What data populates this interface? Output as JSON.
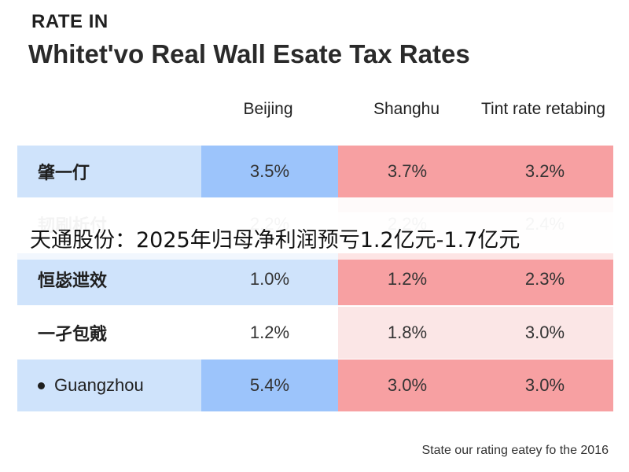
{
  "kicker": "RATE IN",
  "title": "Whitet'vo Real Wall Esate Tax Rates",
  "footnote": "State our rating eatey fo the 2016",
  "banner": "天通股份：2025年归母净利润预亏1.2亿元-1.7亿元",
  "colors": {
    "blue": "#9cc4fb",
    "blue_light": "#cfe3fb",
    "red": "#f7a0a2",
    "red_light": "#fbd3d4",
    "red_pale": "#fbe6e6"
  },
  "chart_data": {
    "type": "table",
    "title": "Whitet'vo Real Wall Esate Tax Rates",
    "columns": [
      "Beijing",
      "Shanghu",
      "Tint rate retabing"
    ],
    "rows": [
      {
        "label": "肇一仃",
        "values": [
          "3.5%",
          "3.7%",
          "3.2%"
        ],
        "bullet": false
      },
      {
        "label": "韧刷析付",
        "values": [
          "2.2%",
          "2.2%",
          "2.4%"
        ],
        "bullet": false
      },
      {
        "label": "恒毖迣效",
        "values": [
          "1.0%",
          "1.2%",
          "2.3%"
        ],
        "bullet": false
      },
      {
        "label": "一孑包戭",
        "values": [
          "1.2%",
          "1.8%",
          "3.0%"
        ],
        "bullet": false
      },
      {
        "label": "Guangzhou",
        "values": [
          "5.4%",
          "3.0%",
          "3.0%"
        ],
        "bullet": true
      }
    ]
  }
}
